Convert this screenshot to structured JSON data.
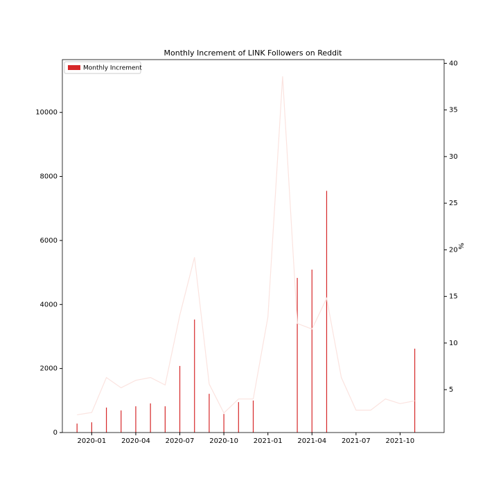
{
  "chart_data": {
    "type": "bar",
    "title": "Monthly Increment of LINK Followers on Reddit",
    "x": [
      "2019-12",
      "2020-01",
      "2020-02",
      "2020-03",
      "2020-04",
      "2020-05",
      "2020-06",
      "2020-07",
      "2020-08",
      "2020-09",
      "2020-10",
      "2020-11",
      "2020-12",
      "2021-01",
      "2021-02",
      "2021-03",
      "2021-04",
      "2021-05",
      "2021-06",
      "2021-07",
      "2021-08",
      "2021-09",
      "2021-10",
      "2021-11"
    ],
    "series": [
      {
        "name": "Monthly Increment",
        "color": "#d62728",
        "type": "bar",
        "values": [
          280,
          320,
          780,
          690,
          820,
          910,
          820,
          2080,
          3530,
          1210,
          580,
          950,
          1000,
          0,
          0,
          4830,
          5090,
          7550,
          0,
          0,
          0,
          0,
          0,
          2620
        ]
      },
      {
        "color": "#fbe3df",
        "type": "line",
        "axis": "y2",
        "values": [
          2.3,
          2.55,
          6.3,
          5.2,
          6.0,
          6.3,
          5.5,
          13,
          19.2,
          5.6,
          2.5,
          4.0,
          4.0,
          12.8,
          38.6,
          12.1,
          11.5,
          14.8,
          6.3,
          2.8,
          2.8,
          4.0,
          3.5,
          3.8
        ]
      }
    ],
    "xlim": [
      "2019-11",
      "2022-01"
    ],
    "xticks": [
      "2020-01",
      "2020-04",
      "2020-07",
      "2020-10",
      "2021-01",
      "2021-04",
      "2021-07",
      "2021-10"
    ],
    "ylim": [
      0,
      11650
    ],
    "yticks": [
      0,
      2000,
      4000,
      6000,
      8000,
      10000
    ],
    "y2lim": [
      0.4,
      40.4
    ],
    "y2ticks": [
      5,
      10,
      15,
      20,
      25,
      30,
      35,
      40
    ],
    "y2label": "%",
    "legend": "upper-left"
  }
}
